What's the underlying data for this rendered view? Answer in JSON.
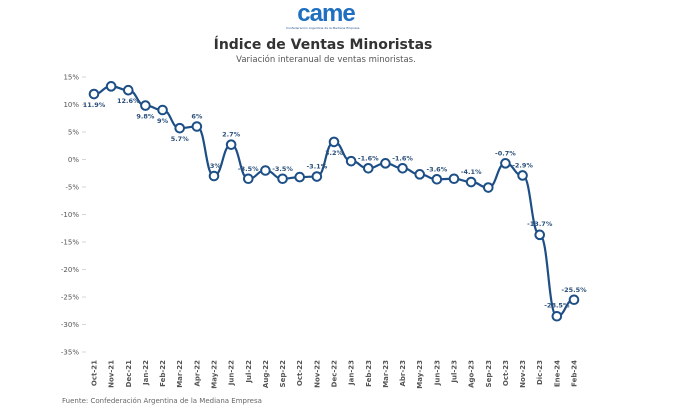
{
  "logo": {
    "text": "came",
    "tagline": "Confederación Argentina de la Mediana Empresa"
  },
  "colors": {
    "line": "#1d4f86",
    "marker_fill": "#ffffff",
    "grid": "#eeeeee"
  },
  "source": "Fuente: Confederación Argentina de la Mediana Empresa",
  "chart_data": {
    "type": "line",
    "title": "Índice de Ventas Minoristas",
    "subtitle": "Variación interanual de ventas minoristas.",
    "xlabel": "",
    "ylabel": "",
    "ylim": [
      -35,
      15
    ],
    "yticks": [
      15,
      10,
      5,
      0,
      -5,
      -10,
      -15,
      -20,
      -25,
      -30,
      -35
    ],
    "ytick_labels": [
      "15%",
      "10%",
      "5%",
      "0%",
      "-5%",
      "-10%",
      "-15%",
      "-20%",
      "-25%",
      "-30%",
      "-35%"
    ],
    "grid": false,
    "categories": [
      "Oct-21",
      "Nov-21",
      "Dec-21",
      "Jan-22",
      "Feb-22",
      "Mar-22",
      "Apr-22",
      "May-22",
      "Jun-22",
      "Jul-22",
      "Aug-22",
      "Sep-22",
      "Oct-22",
      "Nov-22",
      "Dec-22",
      "Jan-23",
      "Feb-23",
      "Mar-23",
      "Abr-23",
      "May-23",
      "Jun-23",
      "Jul-23",
      "Ago-23",
      "Sep-23",
      "Oct-23",
      "Nov-23",
      "Dic-23",
      "Ene-24",
      "Feb-24"
    ],
    "series": [
      {
        "values": [
          11.9,
          13.3,
          12.6,
          9.8,
          9,
          5.7,
          6,
          -3,
          2.7,
          -3.5,
          -2.0,
          -3.5,
          -3.2,
          -3.1,
          3.2,
          -0.3,
          -1.6,
          -0.7,
          -1.6,
          -2.7,
          -3.6,
          -3.5,
          -4.1,
          -5.1,
          -0.7,
          -2.9,
          -13.7,
          -28.5,
          -25.5
        ],
        "data_labels": [
          "11.9%",
          null,
          "12.6%",
          "9.8%",
          "9%",
          "5.7%",
          "6%",
          "-3%",
          "2.7%",
          "-3.5%",
          null,
          "-3.5%",
          null,
          "-3.1%",
          "3.2%",
          null,
          "-1.6%",
          null,
          "-1.6%",
          null,
          "-3.6%",
          null,
          "-4.1%",
          null,
          "-0.7%",
          "-2.9%",
          "-13.7%",
          "-28.5%",
          "-25.5%"
        ]
      }
    ]
  }
}
